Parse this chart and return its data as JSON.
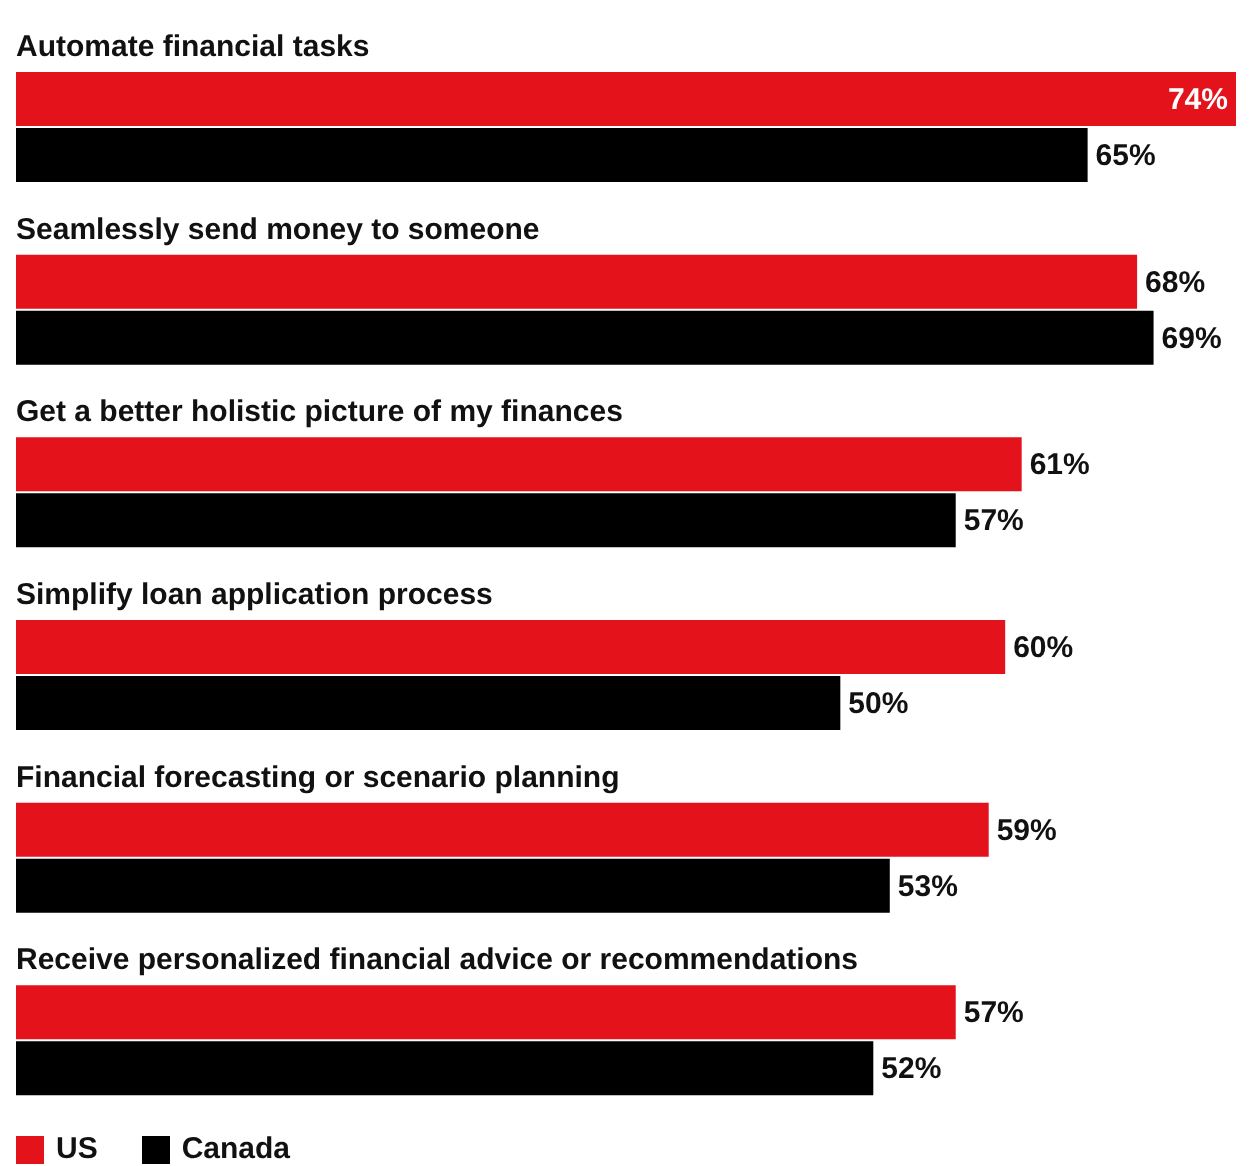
{
  "chart_data": {
    "type": "bar",
    "orientation": "horizontal",
    "legend": "bottom left",
    "categories": [
      "Automate financial tasks",
      "Seamlessly send money to someone",
      "Get a better holistic picture of my finances",
      "Simplify loan application process",
      "Financial forecasting or scenario planning",
      "Receive personalized financial advice or recommendations"
    ],
    "series": [
      {
        "name": "US",
        "color": "#e3121b",
        "values": [
          74,
          68,
          61,
          60,
          59,
          57
        ],
        "value_labels": [
          "74%",
          "68%",
          "61%",
          "60%",
          "59%",
          "57%"
        ]
      },
      {
        "name": "Canada",
        "color": "#000000",
        "values": [
          65,
          69,
          57,
          50,
          53,
          52
        ],
        "value_labels": [
          "65%",
          "69%",
          "57%",
          "50%",
          "53%",
          "52%"
        ]
      }
    ]
  }
}
